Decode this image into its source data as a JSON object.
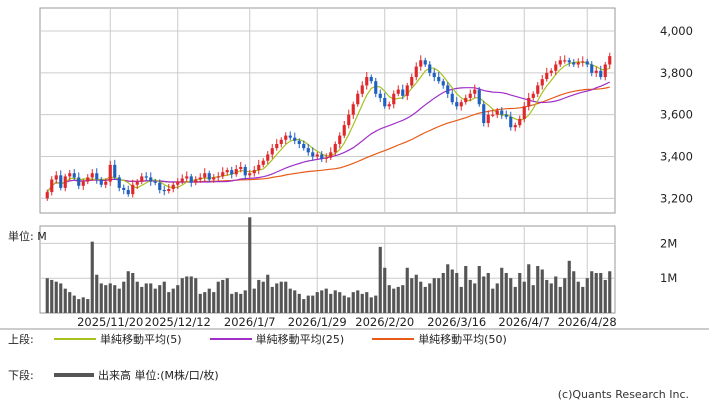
{
  "chart_data": {
    "type": "candlestick",
    "price_panel": {
      "yticks": [
        "4,000",
        "3,800",
        "3,600",
        "3,400",
        "3,200"
      ],
      "ytick_values": [
        4000,
        3800,
        3600,
        3400,
        3200
      ],
      "ylim": [
        3130,
        4110
      ],
      "grid": true
    },
    "volume_panel": {
      "unit_label": "単位: M",
      "yticks": [
        "2M",
        "1M"
      ],
      "ytick_values": [
        2,
        1
      ],
      "ylim": [
        0,
        2.5
      ]
    },
    "xticks": [
      "2025/11/20",
      "2025/12/12",
      "2026/1/7",
      "2026/1/29",
      "2026/2/20",
      "2026/3/16",
      "2026/4/7",
      "2026/4/28"
    ],
    "xtick_index": [
      14,
      29,
      45,
      60,
      75,
      91,
      106,
      120
    ],
    "legend": {
      "upper_label": "上段:",
      "lower_label": "下段:",
      "series": [
        {
          "name": "単純移動平均(5)",
          "color": "#a8c020"
        },
        {
          "name": "単純移動平均(25)",
          "color": "#a030c8"
        },
        {
          "name": "単純移動平均(50)",
          "color": "#e85a18"
        }
      ],
      "volume_series": {
        "name": "出来高 単位:(M株/口/枚)",
        "color": "#555555"
      }
    },
    "colors": {
      "up": "#e0282c",
      "down": "#1f5fc0",
      "volume": "#555555"
    },
    "copyright": "(c)Quants Research Inc.",
    "closes": [
      3230,
      3290,
      3310,
      3250,
      3305,
      3320,
      3300,
      3260,
      3280,
      3300,
      3320,
      3290,
      3265,
      3280,
      3360,
      3300,
      3250,
      3240,
      3220,
      3265,
      3280,
      3305,
      3300,
      3280,
      3275,
      3240,
      3235,
      3245,
      3265,
      3280,
      3295,
      3305,
      3275,
      3290,
      3300,
      3320,
      3290,
      3300,
      3305,
      3325,
      3335,
      3315,
      3340,
      3350,
      3310,
      3320,
      3335,
      3360,
      3380,
      3410,
      3440,
      3460,
      3480,
      3500,
      3490,
      3475,
      3460,
      3440,
      3420,
      3400,
      3410,
      3390,
      3395,
      3420,
      3460,
      3500,
      3550,
      3600,
      3650,
      3700,
      3740,
      3780,
      3760,
      3700,
      3680,
      3640,
      3650,
      3700,
      3720,
      3690,
      3740,
      3780,
      3830,
      3860,
      3840,
      3800,
      3780,
      3760,
      3740,
      3700,
      3660,
      3640,
      3660,
      3680,
      3700,
      3720,
      3650,
      3560,
      3600,
      3600,
      3620,
      3600,
      3590,
      3540,
      3550,
      3580,
      3640,
      3680,
      3700,
      3740,
      3770,
      3800,
      3810,
      3840,
      3860,
      3860,
      3850,
      3840,
      3850,
      3855,
      3840,
      3800,
      3810,
      3780,
      3840,
      3880
    ],
    "volumes": [
      1.0,
      0.95,
      0.9,
      0.85,
      0.7,
      0.6,
      0.5,
      0.4,
      0.45,
      0.4,
      2.05,
      1.1,
      0.85,
      0.8,
      0.85,
      0.8,
      0.7,
      0.9,
      1.2,
      1.15,
      0.9,
      0.75,
      0.85,
      0.85,
      0.7,
      0.8,
      0.9,
      0.6,
      0.7,
      0.8,
      1.0,
      1.05,
      1.05,
      1.0,
      0.55,
      0.6,
      0.7,
      0.6,
      0.9,
      0.95,
      1.0,
      0.55,
      0.6,
      0.55,
      0.65,
      2.75,
      0.7,
      0.95,
      0.9,
      1.1,
      0.75,
      0.85,
      0.9,
      0.9,
      0.7,
      0.65,
      0.55,
      0.4,
      0.5,
      0.5,
      0.6,
      0.65,
      0.7,
      0.55,
      0.65,
      0.6,
      0.5,
      0.45,
      0.6,
      0.65,
      0.55,
      0.6,
      0.45,
      0.5,
      1.9,
      1.3,
      0.8,
      0.7,
      0.75,
      0.8,
      1.3,
      1.0,
      1.1,
      0.9,
      0.75,
      0.85,
      1.0,
      1.0,
      1.15,
      1.4,
      1.25,
      1.15,
      0.75,
      1.35,
      0.95,
      0.85,
      1.35,
      1.05,
      1.15,
      0.7,
      0.85,
      1.3,
      1.15,
      1.0,
      0.75,
      1.15,
      0.9,
      1.4,
      0.8,
      1.35,
      1.25,
      0.95,
      0.85,
      1.05,
      0.75,
      1.0,
      1.5,
      1.2,
      0.9,
      0.75,
      1.0,
      1.2,
      1.15,
      1.15,
      0.95,
      1.2
    ]
  }
}
